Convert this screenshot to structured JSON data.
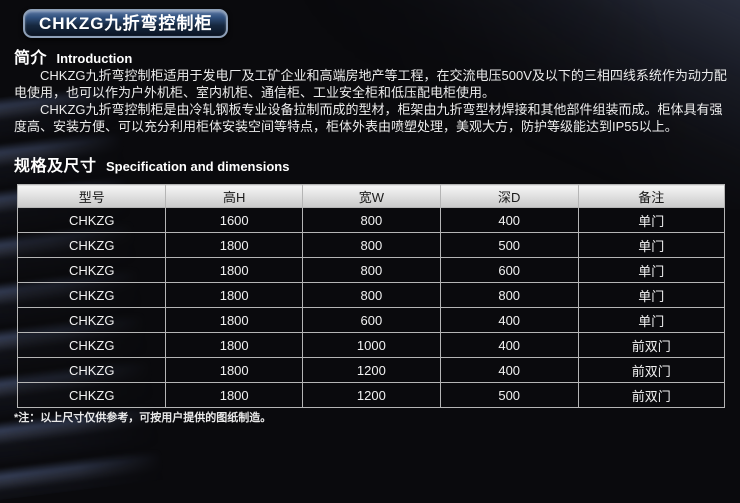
{
  "banner": {
    "title": "CHKZG九折弯控制柜"
  },
  "intro": {
    "heading_zh": "简介",
    "heading_en": "Introduction",
    "paragraphs": [
      "CHKZG九折弯控制柜适用于发电厂及工矿企业和高端房地产等工程，在交流电压500V及以下的三相四线系统作为动力配电使用，也可以作为户外机柜、室内机柜、通信柜、工业安全柜和低压配电柜使用。",
      "CHKZG九折弯控制柜是由冷轧钢板专业设备拉制而成的型材，柜架由九折弯型材焊接和其他部件组装而成。柜体具有强度高、安装方便、可以充分利用柜体安装空间等特点，柜体外表由喷塑处理，美观大方，防护等级能达到IP55以上。"
    ]
  },
  "spec": {
    "heading_zh": "规格及尺寸",
    "heading_en": "Specification and dimensions",
    "table": {
      "headers": [
        "型号",
        "高H",
        "宽W",
        "深D",
        "备注"
      ],
      "rows": [
        [
          "CHKZG",
          "1600",
          "800",
          "400",
          "单门"
        ],
        [
          "CHKZG",
          "1800",
          "800",
          "500",
          "单门"
        ],
        [
          "CHKZG",
          "1800",
          "800",
          "600",
          "单门"
        ],
        [
          "CHKZG",
          "1800",
          "800",
          "800",
          "单门"
        ],
        [
          "CHKZG",
          "1800",
          "600",
          "400",
          "单门"
        ],
        [
          "CHKZG",
          "1800",
          "1000",
          "400",
          "前双门"
        ],
        [
          "CHKZG",
          "1800",
          "1200",
          "400",
          "前双门"
        ],
        [
          "CHKZG",
          "1800",
          "1200",
          "500",
          "前双门"
        ]
      ]
    },
    "footnote": "*注：以上尺寸仅供参考，可按用户提供的图纸制造。"
  },
  "colors": {
    "page_bg": "#0a0a0d",
    "streak_blue": "#6d83b8",
    "banner_border": "#8ea0b8",
    "banner_top": "#5a76a2",
    "banner_bottom": "#0a1322",
    "table_header_bg_top": "#f6f6f6",
    "table_header_bg_bottom": "#c9c9c9",
    "table_header_text": "#1b1b1b",
    "table_border": "#b5b5b5",
    "table_cell_bg": "rgba(10,10,13,0.45)",
    "text_primary": "#ececec"
  }
}
